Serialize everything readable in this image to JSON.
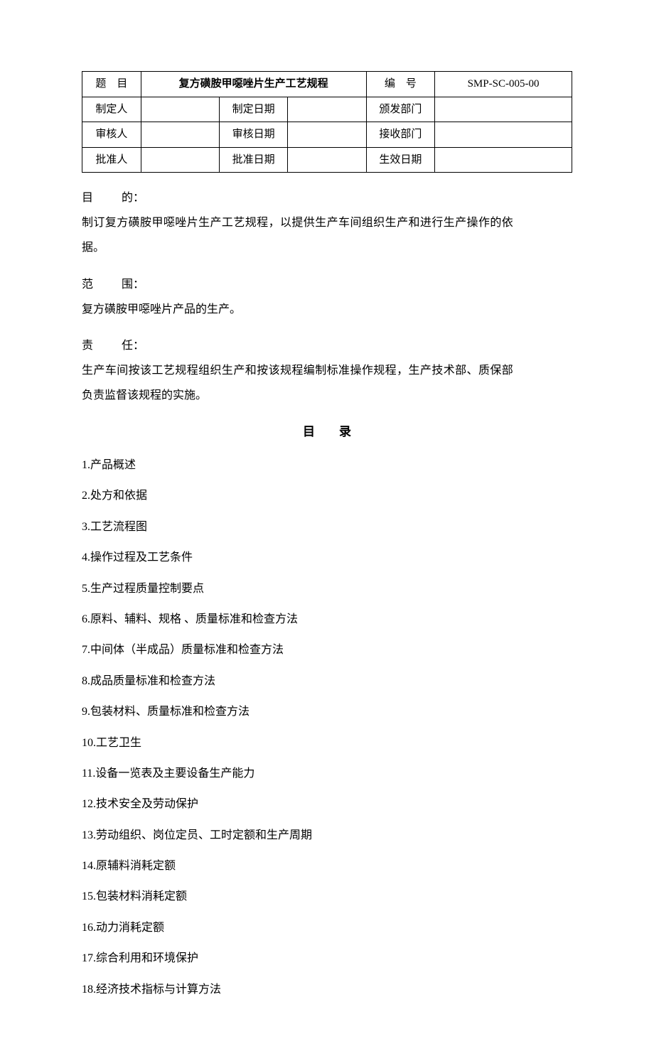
{
  "header_table": {
    "rows": [
      [
        {
          "text": "题　目",
          "colspan": 1
        },
        {
          "text": "复方磺胺甲噁唑片生产工艺规程",
          "colspan": 3,
          "bold": true
        },
        {
          "text": "编　号",
          "colspan": 1
        },
        {
          "text": "SMP-SC-005-00",
          "colspan": 1
        }
      ],
      [
        {
          "text": "制定人"
        },
        {
          "text": ""
        },
        {
          "text": "制定日期"
        },
        {
          "text": ""
        },
        {
          "text": "颁发部门"
        },
        {
          "text": ""
        }
      ],
      [
        {
          "text": "审核人"
        },
        {
          "text": ""
        },
        {
          "text": "审核日期"
        },
        {
          "text": ""
        },
        {
          "text": "接收部门"
        },
        {
          "text": ""
        }
      ],
      [
        {
          "text": "批准人"
        },
        {
          "text": ""
        },
        {
          "text": "批准日期"
        },
        {
          "text": ""
        },
        {
          "text": "生效日期"
        },
        {
          "text": ""
        }
      ]
    ],
    "col_widths_pct": [
      12,
      16,
      14,
      16,
      14,
      28
    ]
  },
  "fields": {
    "purpose": {
      "label": "目　　的",
      "body": "制订复方磺胺甲噁唑片生产工艺规程，以提供生产车间组织生产和进行生产操作的依据。"
    },
    "scope": {
      "label": "范　　围",
      "body": "复方磺胺甲噁唑片产品的生产。"
    },
    "duty": {
      "label": "责　　任",
      "body": "生产车间按该工艺规程组织生产和按该规程编制标准操作规程，生产技术部、质保部负责监督该规程的实施。"
    }
  },
  "toc": {
    "title": "目录",
    "items": [
      "1.产品概述",
      "2.处方和依据",
      "3.工艺流程图",
      "4.操作过程及工艺条件",
      "5.生产过程质量控制要点",
      "6.原料、辅料、规格 、质量标准和检查方法",
      "7.中间体（半成品）质量标准和检查方法",
      "8.成品质量标准和检查方法",
      "9.包装材料、质量标准和检查方法",
      "10.工艺卫生",
      "11.设备一览表及主要设备生产能力",
      "12.技术安全及劳动保护",
      "13.劳动组织、岗位定员、工时定额和生产周期",
      "14.原辅料消耗定额",
      "15.包装材料消耗定额",
      "16.动力消耗定额",
      "17.综合利用和环境保护",
      "18.经济技术指标与计算方法"
    ]
  }
}
